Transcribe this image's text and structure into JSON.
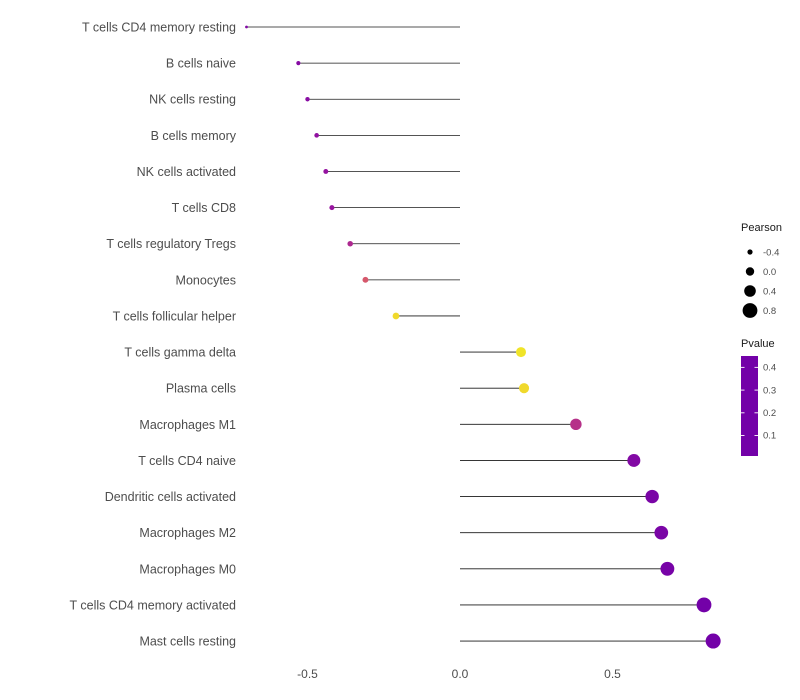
{
  "chart_data": {
    "type": "scatter",
    "subtype": "lollipop",
    "orientation": "horizontal",
    "title": "",
    "xlabel": "",
    "ylabel": "",
    "grid": false,
    "baseline": 0,
    "xlim": [
      -0.85,
      0.95
    ],
    "x_ticks": [
      -0.5,
      0.0,
      0.5
    ],
    "x_tick_labels": [
      "-0.5",
      "0.0",
      "0.5"
    ],
    "rows": [
      {
        "label": "T cells CD4 memory resting",
        "pearson": -0.7,
        "pvalue": 0.05
      },
      {
        "label": "B cells naive",
        "pearson": -0.53,
        "pvalue": 0.06
      },
      {
        "label": "NK cells resting",
        "pearson": -0.5,
        "pvalue": 0.07
      },
      {
        "label": "B cells memory",
        "pearson": -0.47,
        "pvalue": 0.09
      },
      {
        "label": "NK cells activated",
        "pearson": -0.44,
        "pvalue": 0.1
      },
      {
        "label": "T cells CD8",
        "pearson": -0.42,
        "pvalue": 0.11
      },
      {
        "label": "T cells regulatory  Tregs",
        "pearson": -0.36,
        "pvalue": 0.16
      },
      {
        "label": "Monocytes",
        "pearson": -0.31,
        "pvalue": 0.26
      },
      {
        "label": "T cells follicular helper",
        "pearson": -0.21,
        "pvalue": 0.42
      },
      {
        "label": "T cells gamma delta",
        "pearson": 0.2,
        "pvalue": 0.43
      },
      {
        "label": "Plasma cells",
        "pearson": 0.21,
        "pvalue": 0.42
      },
      {
        "label": "Macrophages M1",
        "pearson": 0.38,
        "pvalue": 0.18
      },
      {
        "label": "T cells CD4 naive",
        "pearson": 0.57,
        "pvalue": 0.05
      },
      {
        "label": "Dendritic cells activated",
        "pearson": 0.63,
        "pvalue": 0.03
      },
      {
        "label": "Macrophages M2",
        "pearson": 0.66,
        "pvalue": 0.03
      },
      {
        "label": "Macrophages M0",
        "pearson": 0.68,
        "pvalue": 0.02
      },
      {
        "label": "T cells CD4 memory activated",
        "pearson": 0.8,
        "pvalue": 0.01
      },
      {
        "label": "Mast cells resting",
        "pearson": 0.83,
        "pvalue": 0.01
      }
    ],
    "legend_size": {
      "title": "Pearson",
      "tick_labels": [
        "-0.4",
        "0.0",
        "0.4",
        "0.8"
      ],
      "tick_values": [
        -0.4,
        0.0,
        0.4,
        0.8
      ],
      "dot_color": "#000000"
    },
    "legend_color": {
      "title": "Pvalue",
      "tick_labels": [
        "0.4",
        "0.3",
        "0.2",
        "0.1"
      ],
      "tick_values": [
        0.4,
        0.3,
        0.2,
        0.1
      ],
      "range": [
        0.01,
        0.45
      ],
      "gradient_stops": [
        {
          "t": 0.0,
          "color": "#7301A8"
        },
        {
          "t": 0.25,
          "color": "#9C179E"
        },
        {
          "t": 0.5,
          "color": "#CC4778"
        },
        {
          "t": 0.75,
          "color": "#F1844B"
        },
        {
          "t": 1.0,
          "color": "#F0F921"
        }
      ]
    },
    "colors": {
      "stem": "#1a1a1a",
      "axis_text": "#4d4d4d",
      "legend_title_text": "#1a1a1a",
      "legend_label_text": "#4d4d4d",
      "background": "#ffffff"
    }
  }
}
